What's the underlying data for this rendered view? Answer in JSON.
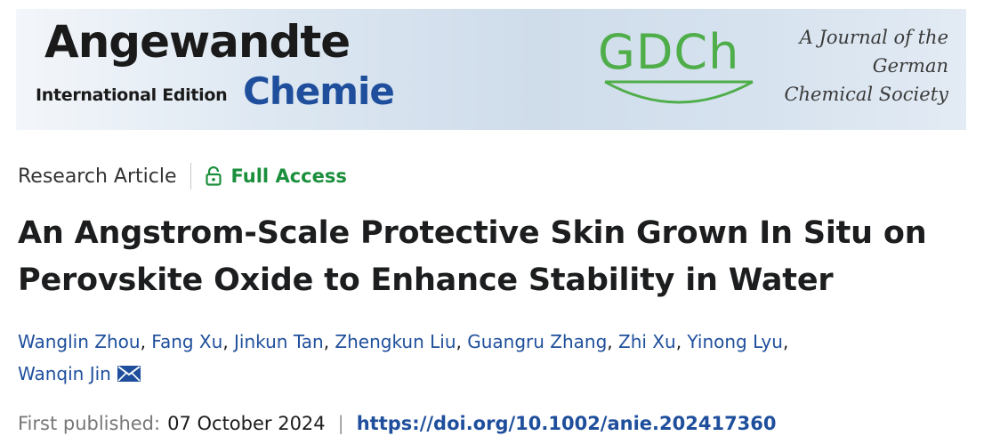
{
  "banner": {
    "journal_name": "Angewandte",
    "edition": "International Edition",
    "journal_subname": "Chemie",
    "society_logo": "GDCh",
    "tagline": [
      "A Journal of the",
      "German",
      "Chemical Society"
    ],
    "colors": {
      "chemie_blue": "#1f4f9c",
      "gdch_green": "#4fae4a"
    }
  },
  "meta": {
    "article_type": "Research Article",
    "access_icon": "lock-open-icon",
    "access_label": "Full Access",
    "access_color": "#1a8f3c"
  },
  "title": "An Angstrom-Scale Protective Skin Grown In Situ on Perovskite Oxide to Enhance Stability in Water",
  "authors": [
    "Wanglin Zhou",
    "Fang Xu",
    "Jinkun Tan",
    "Zhengkun Liu",
    "Guangru Zhang",
    "Zhi Xu",
    "Yinong Lyu",
    "Wanqin Jin"
  ],
  "corresponding_icon": "envelope-icon",
  "publication": {
    "label": "First published:",
    "date": "07 October 2024",
    "separator": "|",
    "doi": "https://doi.org/10.1002/anie.202417360"
  }
}
